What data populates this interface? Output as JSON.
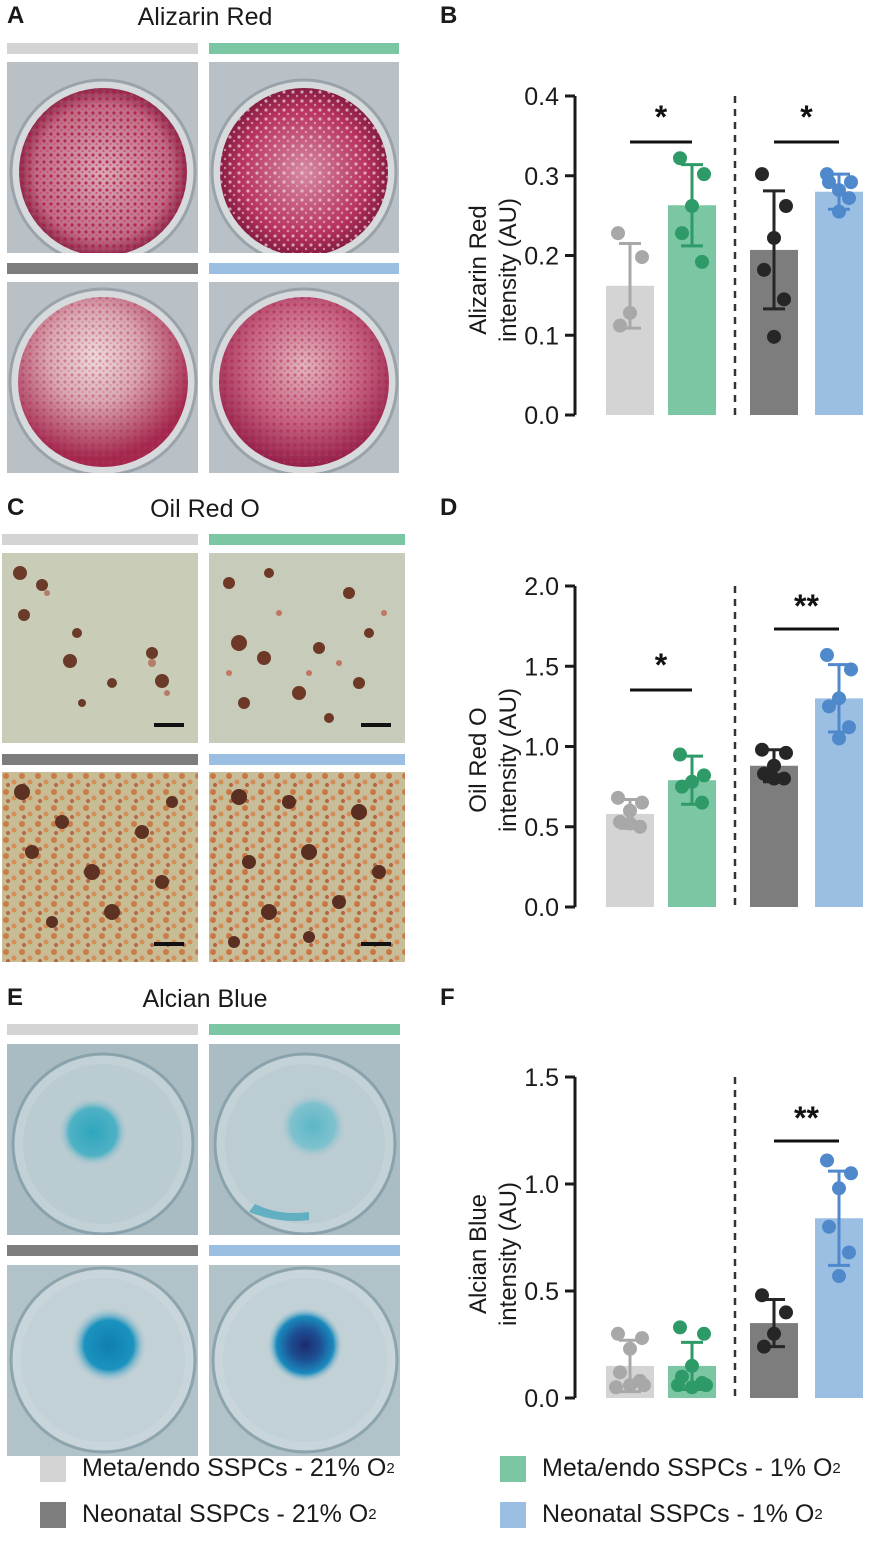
{
  "colors": {
    "meta21": "#d4d4d4",
    "meta1": "#7cc7a3",
    "neo21": "#7d7d7d",
    "neo1": "#9bbfe3",
    "meta21_dot": "#a8a8a8",
    "meta1_dot": "#2e9a68",
    "neo21_dot": "#262626",
    "neo1_dot": "#4f89cc"
  },
  "panels": {
    "A": {
      "letter": "A",
      "title": "Alizarin Red"
    },
    "B": {
      "letter": "B"
    },
    "C": {
      "letter": "C",
      "title": "Oil Red O"
    },
    "D": {
      "letter": "D"
    },
    "E": {
      "letter": "E",
      "title": "Alcian Blue"
    },
    "F": {
      "letter": "F"
    }
  },
  "legend": {
    "items": [
      {
        "text": "Meta/endo SSPCs - 21% O",
        "sub": "2",
        "color": "#d4d4d4"
      },
      {
        "text": "Meta/endo SSPCs - 1% O",
        "sub": "2",
        "color": "#7cc7a3"
      },
      {
        "text": "Neonatal SSPCs - 21% O",
        "sub": "2",
        "color": "#7d7d7d"
      },
      {
        "text": "Neonatal SSPCs - 1% O",
        "sub": "2",
        "color": "#9bbfe3"
      }
    ]
  },
  "chart_data": [
    {
      "panel": "B",
      "type": "bar",
      "ylabel_line1": "Alizarin  Red",
      "ylabel_line2": "intensity (AU)",
      "ylim": [
        0,
        0.4
      ],
      "yticks": [
        "0.0",
        "0.1",
        "0.2",
        "0.3",
        "0.4"
      ],
      "tick_values": [
        0,
        0.1,
        0.2,
        0.3,
        0.4
      ],
      "bars": [
        {
          "mean": 0.162,
          "sd": 0.053,
          "points": [
            0.228,
            0.198,
            0.128,
            0.112
          ]
        },
        {
          "mean": 0.263,
          "sd": 0.051,
          "points": [
            0.322,
            0.302,
            0.262,
            0.228,
            0.192
          ]
        },
        {
          "mean": 0.207,
          "sd": 0.074,
          "points": [
            0.302,
            0.262,
            0.222,
            0.182,
            0.145,
            0.098
          ]
        },
        {
          "mean": 0.28,
          "sd": 0.022,
          "points": [
            0.302,
            0.292,
            0.282,
            0.292,
            0.272,
            0.255
          ]
        }
      ],
      "significance": [
        {
          "pair": [
            0,
            1
          ],
          "label": "*"
        },
        {
          "pair": [
            2,
            3
          ],
          "label": "*"
        }
      ],
      "divider": true
    },
    {
      "panel": "D",
      "type": "bar",
      "ylabel_line1": "Oil Red O",
      "ylabel_line2": "intensity (AU)",
      "ylim": [
        0,
        2.0
      ],
      "yticks": [
        "0.0",
        "0.5",
        "1.0",
        "1.5",
        "2.0"
      ],
      "tick_values": [
        0,
        0.5,
        1.0,
        1.5,
        2.0
      ],
      "bars": [
        {
          "mean": 0.58,
          "sd": 0.09,
          "points": [
            0.68,
            0.65,
            0.6,
            0.53,
            0.5,
            0.52
          ]
        },
        {
          "mean": 0.79,
          "sd": 0.15,
          "points": [
            0.95,
            0.82,
            0.78,
            0.75,
            0.65
          ]
        },
        {
          "mean": 0.88,
          "sd": 0.1,
          "points": [
            0.98,
            0.96,
            0.88,
            0.83,
            0.8,
            0.8
          ]
        },
        {
          "mean": 1.3,
          "sd": 0.21,
          "points": [
            1.57,
            1.48,
            1.3,
            1.25,
            1.12,
            1.05
          ]
        }
      ],
      "significance": [
        {
          "pair": [
            0,
            1
          ],
          "label": "*"
        },
        {
          "pair": [
            2,
            3
          ],
          "label": "**"
        }
      ],
      "divider": true
    },
    {
      "panel": "F",
      "type": "bar",
      "ylabel_line1": "Alcian Blue",
      "ylabel_line2": "intensity (AU)",
      "ylim": [
        0,
        1.5
      ],
      "yticks": [
        "0.0",
        "0.5",
        "1.0",
        "1.5"
      ],
      "tick_values": [
        0,
        0.5,
        1.0,
        1.5
      ],
      "bars": [
        {
          "mean": 0.15,
          "sd": 0.12,
          "points": [
            0.3,
            0.28,
            0.23,
            0.12,
            0.08,
            0.06,
            0.05,
            0.06
          ]
        },
        {
          "mean": 0.15,
          "sd": 0.11,
          "points": [
            0.33,
            0.3,
            0.15,
            0.1,
            0.07,
            0.05,
            0.06,
            0.06
          ]
        },
        {
          "mean": 0.35,
          "sd": 0.11,
          "points": [
            0.48,
            0.4,
            0.3,
            0.24
          ]
        },
        {
          "mean": 0.84,
          "sd": 0.22,
          "points": [
            1.11,
            1.05,
            0.98,
            0.8,
            0.68,
            0.57
          ]
        }
      ],
      "significance": [
        {
          "pair": [
            2,
            3
          ],
          "label": "**"
        }
      ],
      "divider": true
    }
  ]
}
